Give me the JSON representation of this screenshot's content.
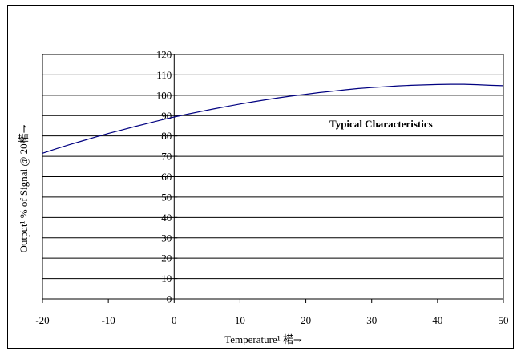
{
  "chart_data": {
    "type": "line",
    "xlabel": "Temperature¹ 楉⇁",
    "ylabel": "Output¹ % of Signal @ 20楉⇁",
    "xlim": [
      -20,
      50
    ],
    "ylim": [
      0,
      120
    ],
    "xticks": [
      -20,
      -10,
      0,
      10,
      20,
      30,
      40,
      50
    ],
    "yticks": [
      0,
      10,
      20,
      30,
      40,
      50,
      60,
      70,
      80,
      90,
      100,
      110,
      120
    ],
    "grid": "horizontal",
    "y_axis_at": 0,
    "annotation": "Typical Characteristics",
    "line_color": "#000080",
    "series": [
      {
        "x": [
          -20,
          -18,
          -16,
          -14,
          -12,
          -10,
          -8,
          -6,
          -4,
          -2,
          0,
          2,
          4,
          6,
          8,
          10,
          12,
          14,
          16,
          18,
          20,
          22,
          24,
          26,
          28,
          30,
          32,
          34,
          36,
          38,
          40,
          42,
          44,
          46,
          48,
          50
        ],
        "values": [
          71.5,
          73.6,
          75.6,
          77.5,
          79.4,
          81.2,
          82.9,
          84.6,
          86.2,
          87.8,
          89.3,
          90.7,
          92.0,
          93.3,
          94.5,
          95.7,
          96.8,
          97.8,
          98.8,
          99.7,
          100.5,
          101.3,
          102.0,
          102.7,
          103.3,
          103.8,
          104.2,
          104.6,
          104.9,
          105.1,
          105.3,
          105.4,
          105.4,
          105.2,
          104.9,
          104.7
        ]
      }
    ]
  }
}
